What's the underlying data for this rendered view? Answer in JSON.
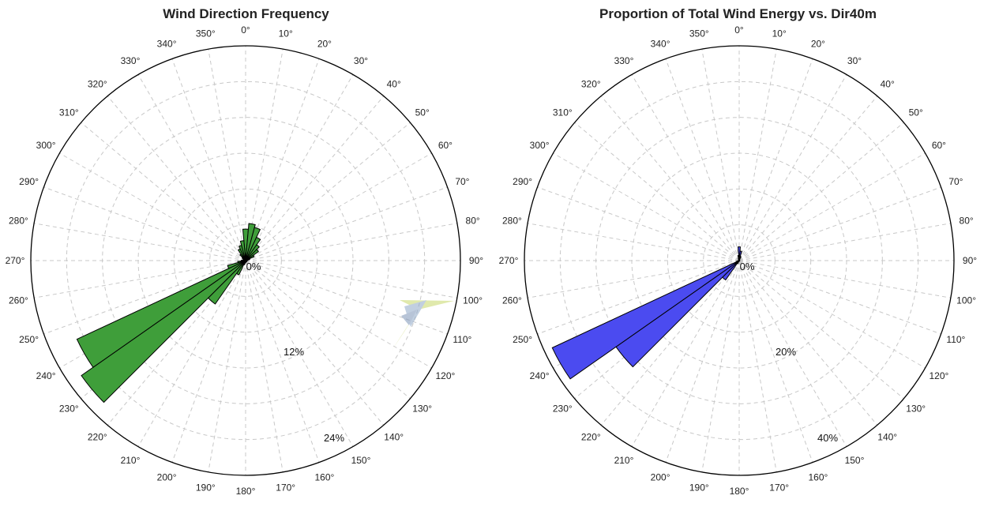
{
  "chart_data": [
    {
      "type": "polar-bar",
      "title": "Wind Direction Frequency",
      "color": "#3f9e3a",
      "rmax": 30,
      "ring_labels": [
        "0%",
        "12%",
        "24%"
      ],
      "ring_values": [
        0,
        12,
        24
      ],
      "angle_labels": [
        "0°",
        "10°",
        "20°",
        "30°",
        "40°",
        "50°",
        "60°",
        "70°",
        "80°",
        "90°",
        "100°",
        "110°",
        "120°",
        "130°",
        "140°",
        "150°",
        "160°",
        "170°",
        "180°",
        "190°",
        "200°",
        "210°",
        "220°",
        "230°",
        "240°",
        "250°",
        "260°",
        "270°",
        "280°",
        "290°",
        "300°",
        "310°",
        "320°",
        "330°",
        "340°",
        "350°"
      ],
      "directions": [
        0,
        10,
        20,
        30,
        40,
        50,
        60,
        70,
        80,
        90,
        100,
        110,
        120,
        130,
        140,
        150,
        160,
        170,
        180,
        190,
        200,
        210,
        220,
        230,
        240,
        250,
        260,
        270,
        280,
        290,
        300,
        310,
        320,
        330,
        340,
        350
      ],
      "values": [
        4.4,
        5.2,
        4.8,
        3.6,
        2.7,
        2.2,
        1.3,
        0.6,
        0.3,
        0.2,
        0.2,
        0.2,
        0.2,
        0.2,
        0.2,
        0.2,
        0.2,
        0.2,
        0.3,
        0.3,
        0.6,
        2.2,
        7.4,
        28,
        26,
        2.6,
        1.1,
        0.6,
        0.4,
        0.3,
        0.3,
        0.6,
        1.1,
        1.8,
        2.2,
        2.8
      ]
    },
    {
      "type": "polar-bar",
      "title": "Proportion of Total Wind Energy vs. Dir40m",
      "color": "#4b4bf0",
      "rmax": 50,
      "ring_labels": [
        "0%",
        "20%",
        "40%"
      ],
      "ring_values": [
        0,
        20,
        40
      ],
      "angle_labels": [
        "0°",
        "10°",
        "20°",
        "30°",
        "40°",
        "50°",
        "60°",
        "70°",
        "80°",
        "90°",
        "100°",
        "110°",
        "120°",
        "130°",
        "140°",
        "150°",
        "160°",
        "170°",
        "180°",
        "190°",
        "200°",
        "210°",
        "220°",
        "230°",
        "240°",
        "250°",
        "260°",
        "270°",
        "280°",
        "290°",
        "300°",
        "310°",
        "320°",
        "330°",
        "340°",
        "350°"
      ],
      "directions": [
        0,
        10,
        20,
        30,
        40,
        50,
        60,
        70,
        80,
        90,
        100,
        110,
        120,
        130,
        140,
        150,
        160,
        170,
        180,
        190,
        200,
        210,
        220,
        230,
        240,
        250,
        260,
        270,
        280,
        290,
        300,
        310,
        320,
        330,
        340,
        350
      ],
      "values": [
        3.2,
        2.2,
        1.0,
        0.2,
        0.1,
        0.1,
        0.1,
        0.1,
        0.1,
        0.1,
        0.1,
        0.1,
        0.1,
        0.1,
        0.1,
        0.1,
        0.1,
        0.1,
        0.1,
        0.1,
        0.2,
        0.8,
        5.5,
        35,
        48,
        0.6,
        0.2,
        0.1,
        0.1,
        0.1,
        0.1,
        0.1,
        0.2,
        0.3,
        0.5,
        1.2
      ]
    }
  ]
}
